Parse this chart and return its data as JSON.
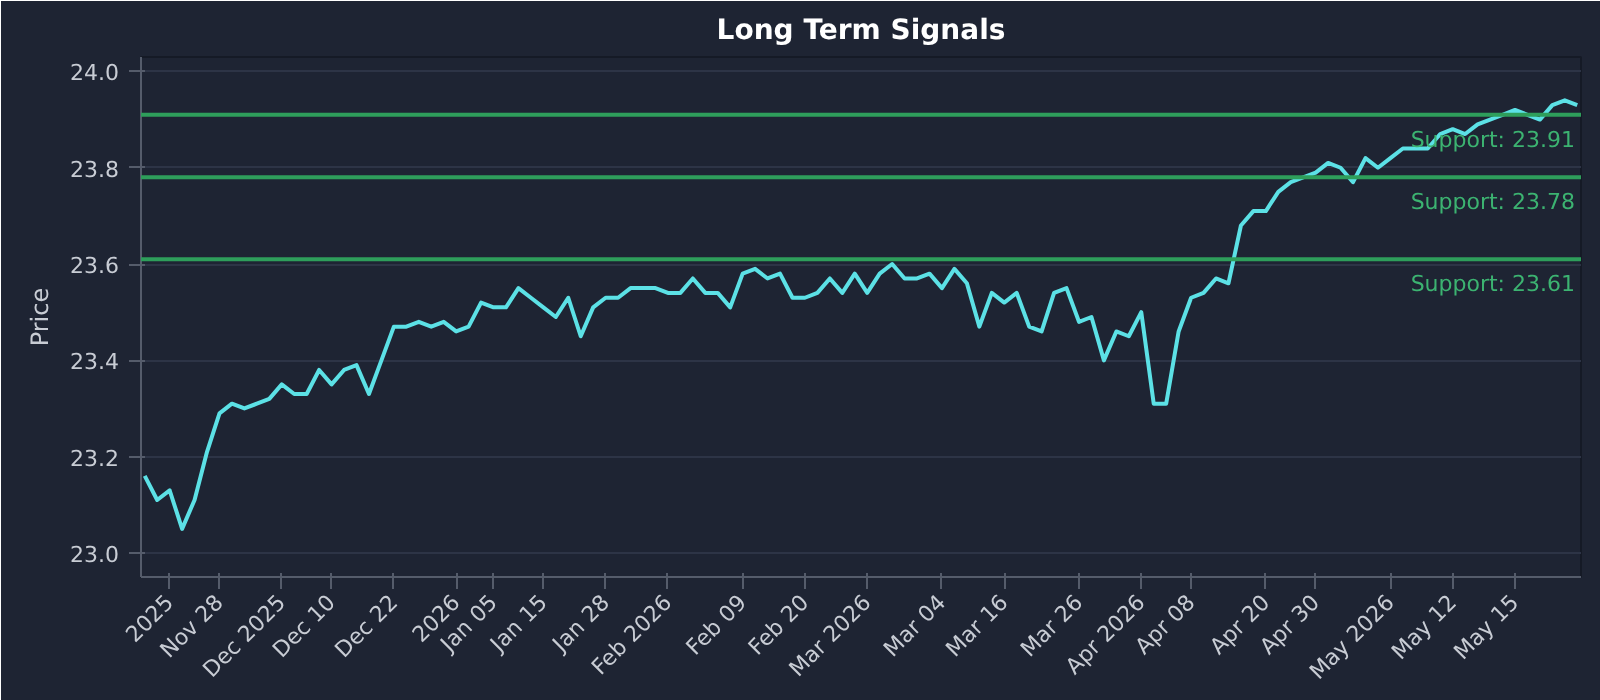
{
  "chart_data": {
    "type": "line",
    "title": "Long Term Signals",
    "ylabel": "Price",
    "categories": [
      null,
      null,
      "2025",
      null,
      null,
      null,
      "Nov 28",
      null,
      null,
      null,
      null,
      "Dec 2025",
      null,
      null,
      null,
      "Dec 10",
      null,
      null,
      null,
      null,
      "Dec 22",
      null,
      null,
      null,
      null,
      "2026",
      null,
      null,
      "Jan 05",
      null,
      null,
      null,
      "Jan 15",
      null,
      null,
      null,
      null,
      "Jan 28",
      null,
      null,
      null,
      null,
      "Feb 2026",
      null,
      null,
      null,
      null,
      null,
      "Feb 09",
      null,
      null,
      null,
      null,
      "Feb 20",
      null,
      null,
      null,
      null,
      "Mar 2026",
      null,
      null,
      null,
      null,
      null,
      "Mar 04",
      null,
      null,
      null,
      null,
      "Mar 16",
      null,
      null,
      null,
      null,
      null,
      "Mar 26",
      null,
      null,
      null,
      null,
      "Apr 2026",
      null,
      null,
      null,
      "Apr 08",
      null,
      null,
      null,
      null,
      null,
      "Apr 20",
      null,
      null,
      null,
      "Apr 30",
      null,
      null,
      null,
      null,
      null,
      "May 2026",
      null,
      null,
      null,
      null,
      "May 12",
      null,
      null,
      null,
      null,
      "May 15",
      null,
      null,
      null,
      null,
      null
    ],
    "series": [
      {
        "color": "#5ce1e6",
        "values": [
          23.16,
          23.11,
          23.13,
          23.05,
          23.11,
          23.21,
          23.29,
          23.31,
          23.3,
          23.31,
          23.32,
          23.35,
          23.33,
          23.33,
          23.38,
          23.35,
          23.38,
          23.39,
          23.33,
          23.4,
          23.47,
          23.47,
          23.48,
          23.47,
          23.48,
          23.46,
          23.47,
          23.52,
          23.51,
          23.51,
          23.55,
          23.53,
          23.51,
          23.49,
          23.53,
          23.45,
          23.51,
          23.53,
          23.53,
          23.55,
          23.55,
          23.55,
          23.54,
          23.54,
          23.57,
          23.54,
          23.54,
          23.51,
          23.58,
          23.59,
          23.57,
          23.58,
          23.53,
          23.53,
          23.54,
          23.57,
          23.54,
          23.58,
          23.54,
          23.58,
          23.6,
          23.57,
          23.57,
          23.58,
          23.55,
          23.59,
          23.56,
          23.47,
          23.54,
          23.52,
          23.54,
          23.47,
          23.46,
          23.54,
          23.55,
          23.48,
          23.49,
          23.4,
          23.46,
          23.45,
          23.5,
          23.31,
          23.31,
          23.46,
          23.53,
          23.54,
          23.57,
          23.56,
          23.68,
          23.71,
          23.71,
          23.75,
          23.77,
          23.78,
          23.79,
          23.81,
          23.8,
          23.77,
          23.82,
          23.8,
          23.82,
          23.84,
          23.84,
          23.84,
          23.87,
          23.88,
          23.87,
          23.89,
          23.9,
          23.91,
          23.92,
          23.91,
          23.9,
          23.93,
          23.94,
          23.93
        ]
      }
    ],
    "ylim": [
      22.95,
      24.03
    ],
    "yticks": [
      {
        "value": 23.0,
        "label": "23.0"
      },
      {
        "value": 23.2,
        "label": "23.2"
      },
      {
        "value": 23.4,
        "label": "23.4"
      },
      {
        "value": 23.6,
        "label": "23.6"
      },
      {
        "value": 23.8,
        "label": "23.8"
      },
      {
        "value": 24.0,
        "label": "24.0"
      }
    ],
    "grid": "y",
    "ref_lines": [
      {
        "axis": "y",
        "value": 23.91,
        "label": "Support: 23.91",
        "color": "#2e9e5b"
      },
      {
        "axis": "y",
        "value": 23.78,
        "label": "Support: 23.78",
        "color": "#2e9e5b"
      },
      {
        "axis": "y",
        "value": 23.61,
        "label": "Support: 23.61",
        "color": "#2e9e5b"
      }
    ]
  }
}
